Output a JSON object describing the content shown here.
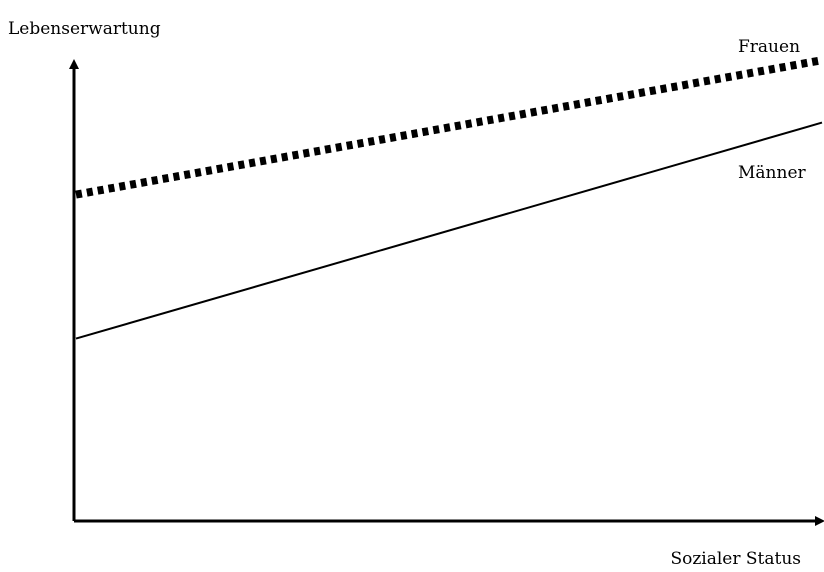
{
  "chart_data": {
    "type": "line",
    "xlabel": "Sozialer Status",
    "ylabel": "Lebenserwartung",
    "x": [
      0,
      1
    ],
    "xlim": [
      0,
      1
    ],
    "ylim": [
      0,
      1
    ],
    "grid": false,
    "series": [
      {
        "name": "Frauen",
        "values": [
          0.68,
          0.96
        ],
        "style": "dotted",
        "color": "#000000"
      },
      {
        "name": "Männer",
        "values": [
          0.38,
          0.83
        ],
        "style": "solid",
        "color": "#000000"
      }
    ]
  }
}
